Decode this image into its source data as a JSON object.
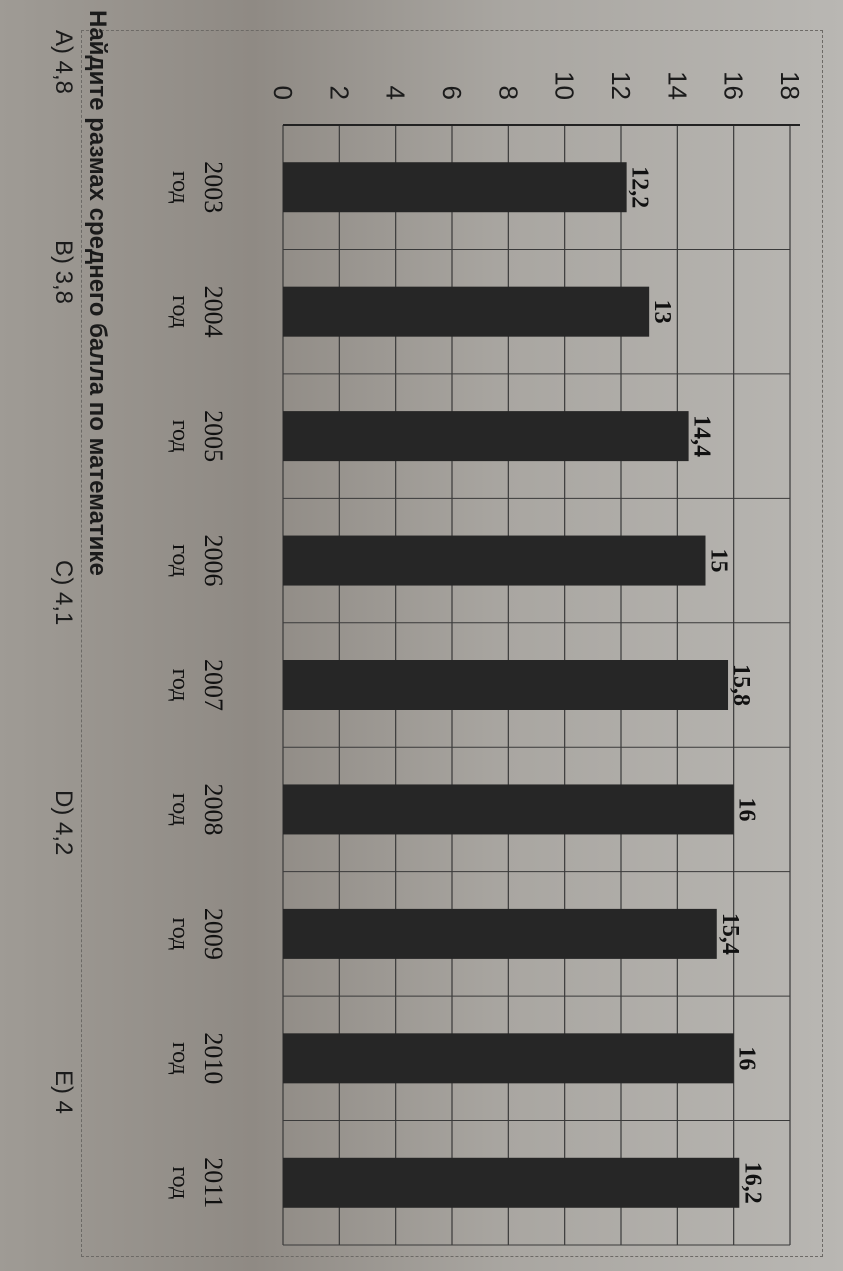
{
  "chart_data": {
    "type": "bar",
    "categories": [
      "2003",
      "2004",
      "2005",
      "2006",
      "2007",
      "2008",
      "2009",
      "2010",
      "2011"
    ],
    "category_suffix": "год",
    "values": [
      12.2,
      13,
      14.4,
      15,
      15.8,
      16,
      15.4,
      16,
      16.2
    ],
    "data_labels": [
      "12,2",
      "13",
      "14,4",
      "15",
      "15,8",
      "16",
      "15,4",
      "16",
      "16,2"
    ],
    "yticks": [
      "0",
      "2",
      "4",
      "6",
      "8",
      "10",
      "12",
      "14",
      "16",
      "18"
    ],
    "ylim": [
      0,
      18
    ],
    "grid": true,
    "bar_color": "#262626"
  },
  "question": {
    "text": "Найдите размах среднего балла по математике",
    "options": [
      "A) 4,8",
      "B) 3,8",
      "C) 4,1",
      "D) 4,2",
      "E) 4"
    ]
  }
}
